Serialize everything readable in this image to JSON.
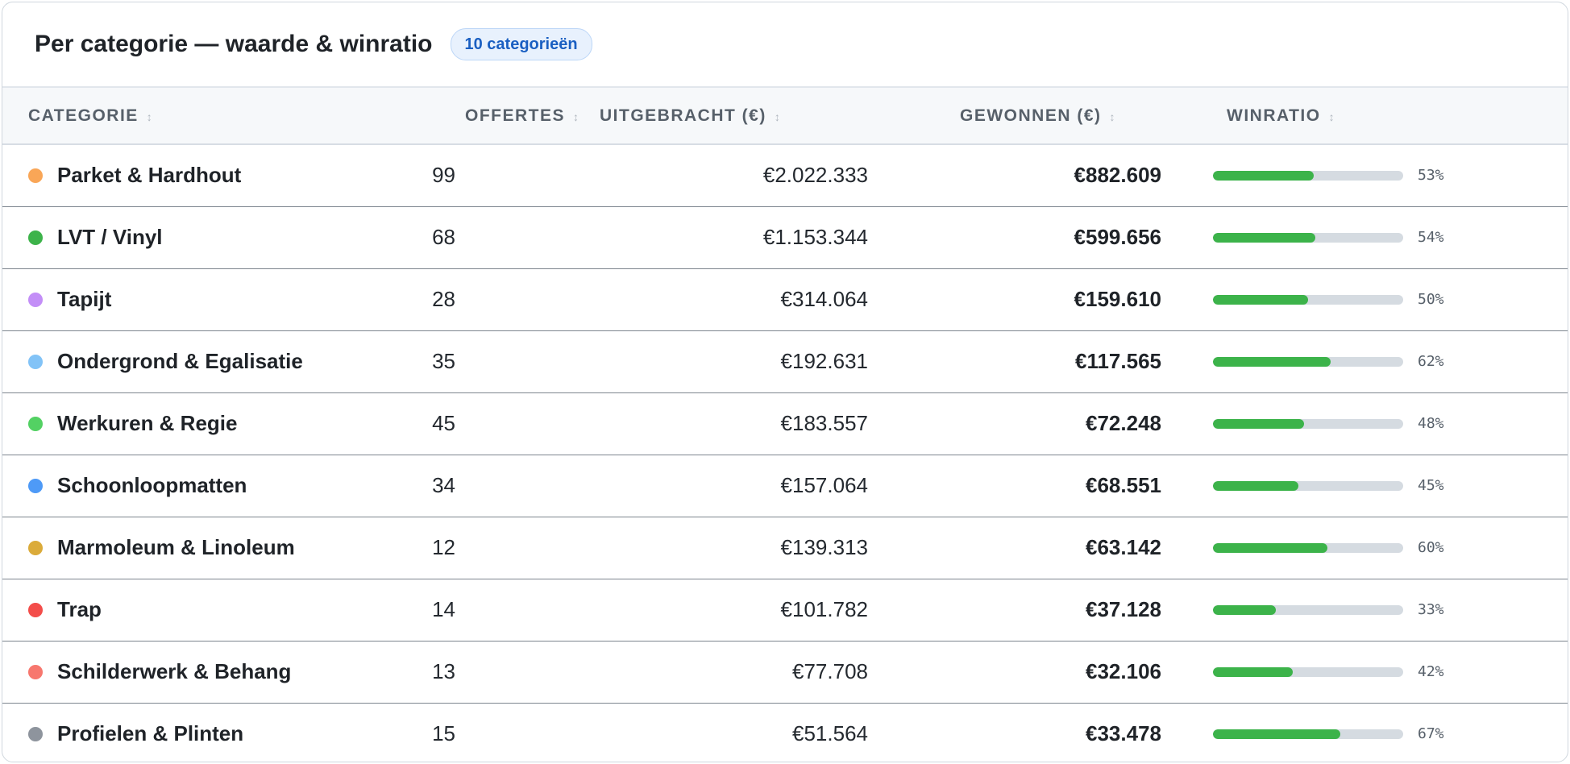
{
  "header": {
    "title": "Per categorie — waarde & winratio",
    "badge": "10 categorieën"
  },
  "columns": {
    "category": "CATEGORIE",
    "quotes": "OFFERTES",
    "issued": "UITGEBRACHT (€)",
    "won": "GEWONNEN (€)",
    "win_ratio": "WINRATIO"
  },
  "colors": {
    "bar_fill": "#3cb34a",
    "bar_track": "#d5dbe1",
    "badge_text": "#1a5fc2"
  },
  "rows": [
    {
      "color": "#f9a657",
      "name": "Parket & Hardhout",
      "quotes": "99",
      "issued": "€2.022.333",
      "won": "€882.609",
      "ratio": 53,
      "ratio_label": "53%"
    },
    {
      "color": "#3db34a",
      "name": "LVT / Vinyl",
      "quotes": "68",
      "issued": "€1.153.344",
      "won": "€599.656",
      "ratio": 54,
      "ratio_label": "54%"
    },
    {
      "color": "#c38ef7",
      "name": "Tapijt",
      "quotes": "28",
      "issued": "€314.064",
      "won": "€159.610",
      "ratio": 50,
      "ratio_label": "50%"
    },
    {
      "color": "#82c3f7",
      "name": "Ondergrond & Egalisatie",
      "quotes": "35",
      "issued": "€192.631",
      "won": "€117.565",
      "ratio": 62,
      "ratio_label": "62%"
    },
    {
      "color": "#53d163",
      "name": "Werkuren & Regie",
      "quotes": "45",
      "issued": "€183.557",
      "won": "€72.248",
      "ratio": 48,
      "ratio_label": "48%"
    },
    {
      "color": "#4e9af7",
      "name": "Schoonloopmatten",
      "quotes": "34",
      "issued": "€157.064",
      "won": "€68.551",
      "ratio": 45,
      "ratio_label": "45%"
    },
    {
      "color": "#dbab3a",
      "name": "Marmoleum & Linoleum",
      "quotes": "12",
      "issued": "€139.313",
      "won": "€63.142",
      "ratio": 60,
      "ratio_label": "60%"
    },
    {
      "color": "#f34d4a",
      "name": "Trap",
      "quotes": "14",
      "issued": "€101.782",
      "won": "€37.128",
      "ratio": 33,
      "ratio_label": "33%"
    },
    {
      "color": "#f7776e",
      "name": "Schilderwerk & Behang",
      "quotes": "13",
      "issued": "€77.708",
      "won": "€32.106",
      "ratio": 42,
      "ratio_label": "42%"
    },
    {
      "color": "#8e949d",
      "name": "Profielen & Plinten",
      "quotes": "15",
      "issued": "€51.564",
      "won": "€33.478",
      "ratio": 67,
      "ratio_label": "67%"
    }
  ]
}
